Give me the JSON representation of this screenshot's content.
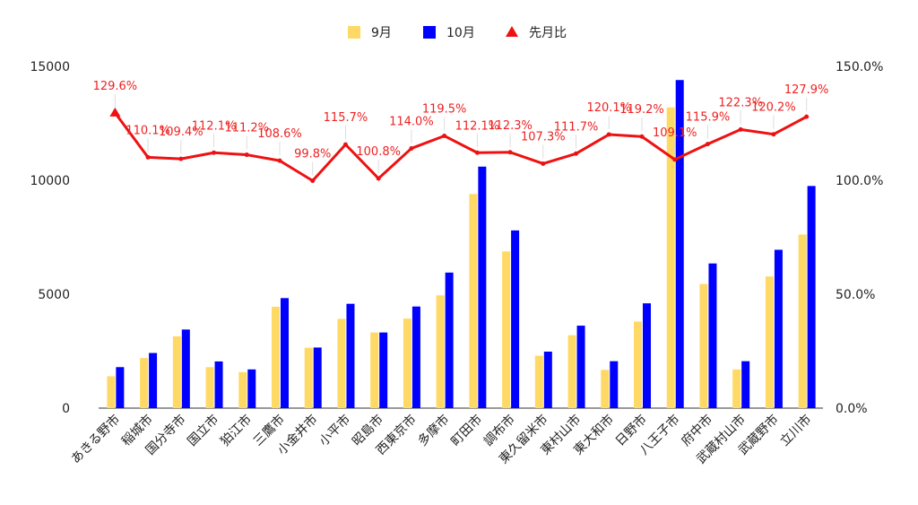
{
  "chart_data": {
    "type": "bar",
    "categories": [
      "あきる野市",
      "稲城市",
      "国分寺市",
      "国立市",
      "狛江市",
      "三鷹市",
      "小金井市",
      "小平市",
      "昭島市",
      "西東京市",
      "多摩市",
      "町田市",
      "調布市",
      "東久留米市",
      "東村山市",
      "東大和市",
      "日野市",
      "八王子市",
      "府中市",
      "武蔵村山市",
      "武蔵野市",
      "立川市"
    ],
    "series": [
      {
        "name": "9月",
        "type": "bar",
        "axis": "left",
        "color": "#ffd966",
        "values": [
          1400,
          2200,
          3150,
          1800,
          1580,
          4450,
          2650,
          3920,
          3320,
          3930,
          4950,
          9400,
          6880,
          2300,
          3200,
          1680,
          3800,
          13200,
          5450,
          1700,
          5780,
          7620
        ]
      },
      {
        "name": "10月",
        "type": "bar",
        "axis": "left",
        "color": "#0000ff",
        "values": [
          1800,
          2420,
          3450,
          2050,
          1700,
          4830,
          2660,
          4580,
          3320,
          4460,
          5950,
          10600,
          7800,
          2480,
          3620,
          2060,
          4600,
          14400,
          6350,
          2060,
          6950,
          9750
        ]
      },
      {
        "name": "先月比",
        "type": "line",
        "axis": "right",
        "color": "#ee1111",
        "values": [
          129.6,
          110.1,
          109.4,
          112.1,
          111.2,
          108.6,
          99.8,
          115.7,
          100.8,
          114.0,
          119.5,
          112.1,
          112.3,
          107.3,
          111.7,
          120.1,
          119.2,
          109.1,
          115.9,
          122.3,
          120.2,
          127.9
        ],
        "labels": [
          "129.6%",
          "110.1%",
          "109.4%",
          "112.1%",
          "111.2%",
          "108.6%",
          "99.8%",
          "115.7%",
          "100.8%",
          "114.0%",
          "119.5%",
          "112.1%",
          "112.3%",
          "107.3%",
          "111.7%",
          "120.1%",
          "119.2%",
          "109.1%",
          "115.9%",
          "122.3%",
          "120.2%",
          "127.9%"
        ]
      }
    ],
    "y_left": {
      "range": [
        0,
        15000
      ],
      "ticks": [
        "0",
        "5000",
        "10000",
        "15000"
      ]
    },
    "y_right": {
      "range": [
        0,
        150
      ],
      "ticks": [
        "0.0%",
        "50.0%",
        "100.0%",
        "150.0%"
      ]
    },
    "legend": {
      "position": "top",
      "entries": [
        "9月",
        "10月",
        "先月比"
      ]
    },
    "grid": false
  }
}
